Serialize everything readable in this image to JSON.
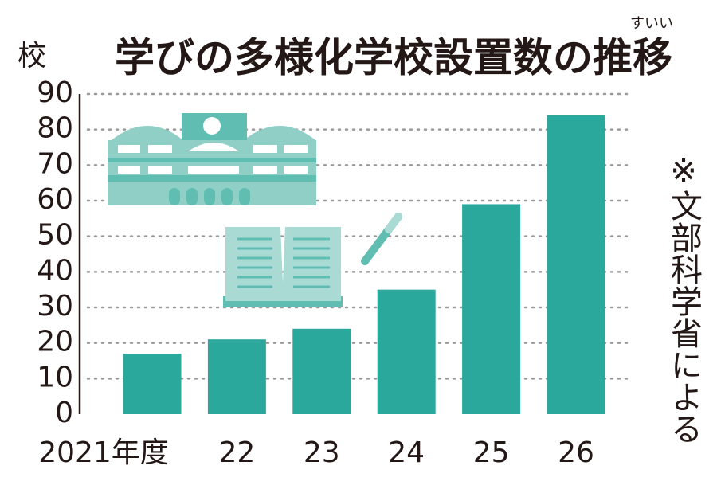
{
  "chart_data": {
    "type": "bar",
    "title": "学びの多様化学校設置数の推移",
    "title_ruby": "すいい",
    "y_label": "校",
    "note": "※文部科学省による",
    "categories": [
      "2021年度",
      "22",
      "23",
      "24",
      "25",
      "26"
    ],
    "values": [
      17,
      21,
      24,
      35,
      59,
      84
    ],
    "color": "#2ba89c",
    "ylim": [
      0,
      90
    ],
    "yticks": [
      0,
      10,
      20,
      30,
      40,
      50,
      60,
      70,
      80,
      90
    ],
    "grid": true
  }
}
